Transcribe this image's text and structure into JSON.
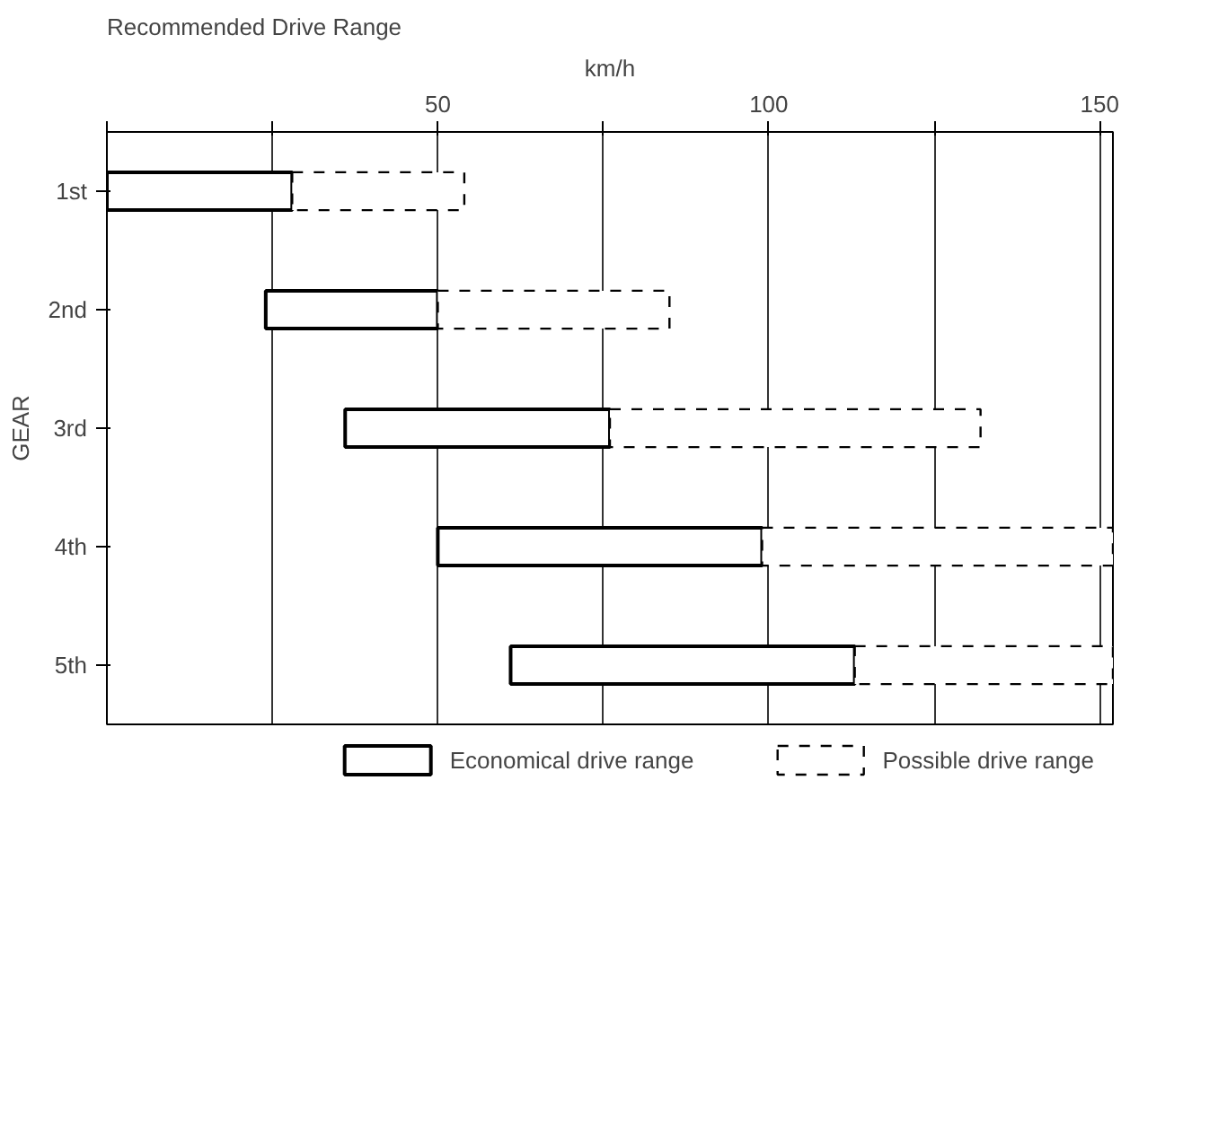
{
  "chart_data": {
    "type": "bar",
    "orientation": "horizontal",
    "title": "Recommended Drive Range",
    "xlabel": "km/h",
    "ylabel": "GEAR",
    "categories": [
      "1st",
      "2nd",
      "3rd",
      "4th",
      "5th"
    ],
    "xlim": [
      0,
      152
    ],
    "xticks": [
      {
        "value": 0,
        "label": null
      },
      {
        "value": 25,
        "label": null
      },
      50,
      {
        "value": 75,
        "label": null
      },
      100,
      {
        "value": 125,
        "label": null
      },
      150
    ],
    "grid": "x",
    "legend": "bottom",
    "series": [
      {
        "name": "Economical drive range",
        "color": "#000000",
        "line_style": "solid",
        "base": [
          0,
          24,
          36,
          50,
          61
        ],
        "values": [
          28,
          26,
          40,
          49,
          52
        ]
      },
      {
        "name": "Possible drive range",
        "color": "#000000",
        "line_style": "dashed",
        "base": [
          28,
          50,
          76,
          99,
          113
        ],
        "values": [
          26,
          35,
          56,
          53,
          39
        ]
      }
    ]
  }
}
